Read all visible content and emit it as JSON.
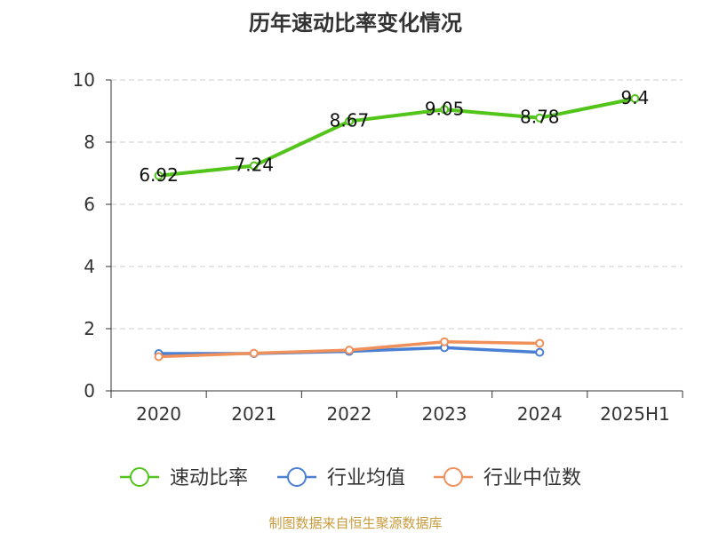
{
  "chart_data": {
    "type": "line",
    "title": "历年速动比率变化情况",
    "categories": [
      "2020",
      "2021",
      "2022",
      "2023",
      "2024",
      "2025H1"
    ],
    "yticks": [
      "0",
      "2",
      "4",
      "6",
      "8",
      "10"
    ],
    "ylim": [
      0,
      10
    ],
    "grid": true,
    "legend_position": "bottom",
    "series": [
      {
        "name": "速动比率",
        "color": "#52c41a",
        "values": [
          6.92,
          7.24,
          8.67,
          9.05,
          8.78,
          9.4
        ],
        "labels": [
          "6.92",
          "7.24",
          "8.67",
          "9.05",
          "8.78",
          "9.4"
        ]
      },
      {
        "name": "行业均值",
        "color": "#4a7fd4",
        "values": [
          1.2,
          1.2,
          1.27,
          1.39,
          1.24,
          null
        ]
      },
      {
        "name": "行业中位数",
        "color": "#f0905a",
        "values": [
          1.1,
          1.21,
          1.31,
          1.58,
          1.53,
          null
        ]
      }
    ]
  },
  "footer": {
    "source": "制图数据来自恒生聚源数据库"
  }
}
